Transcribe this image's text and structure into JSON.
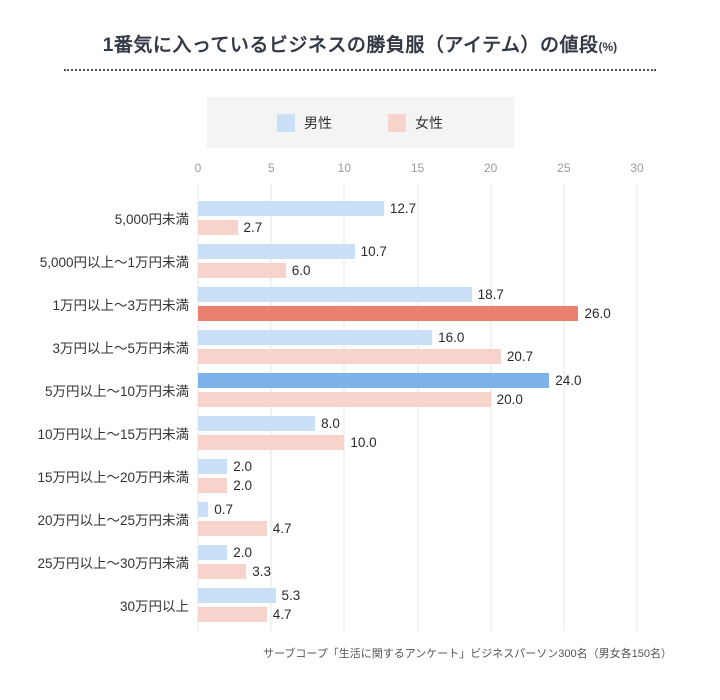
{
  "page": {
    "title_main": "1番気に入っているビジネスの勝負服（アイテム）の値段",
    "title_suffix": "(%)",
    "source_note": "サーブコープ「生活に関するアンケート」ビジネスパーソン300名（男女各150名）"
  },
  "colors": {
    "male_normal": "#c9e0f7",
    "male_highlight": "#7cb3ea",
    "female_normal": "#f8d3cb",
    "female_highlight": "#e98170",
    "legend_background": "#f4f4f5",
    "gridline": "#e4e4e4",
    "title_text": "#333a45"
  },
  "chart_data": {
    "type": "bar",
    "orientation": "horizontal",
    "title": "1番気に入っているビジネスの勝負服（アイテム）の値段(%)",
    "categories": [
      "5,000円未満",
      "5,000円以上～1万円未満",
      "1万円以上～3万円未満",
      "3万円以上～5万円未満",
      "5万円以上～10万円未満",
      "10万円以上～15万円未満",
      "15万円以上～20万円未満",
      "20万円以上～25万円未満",
      "25万円以上～30万円未満",
      "30万円以上"
    ],
    "series": [
      {
        "name": "男性",
        "color": "#c9e0f7",
        "highlight_color": "#7cb3ea",
        "highlight_index": 4,
        "values": [
          12.7,
          10.7,
          18.7,
          16.0,
          24.0,
          8.0,
          2.0,
          0.7,
          2.0,
          5.3
        ]
      },
      {
        "name": "女性",
        "color": "#f8d3cb",
        "highlight_color": "#e98170",
        "highlight_index": 2,
        "values": [
          2.7,
          6.0,
          26.0,
          20.7,
          20.0,
          10.0,
          2.0,
          4.7,
          3.3,
          4.7
        ]
      }
    ],
    "xlim": [
      0,
      30
    ],
    "xticks": [
      0,
      5,
      10,
      15,
      20,
      25,
      30
    ],
    "grid": true,
    "legend_position": "top"
  }
}
